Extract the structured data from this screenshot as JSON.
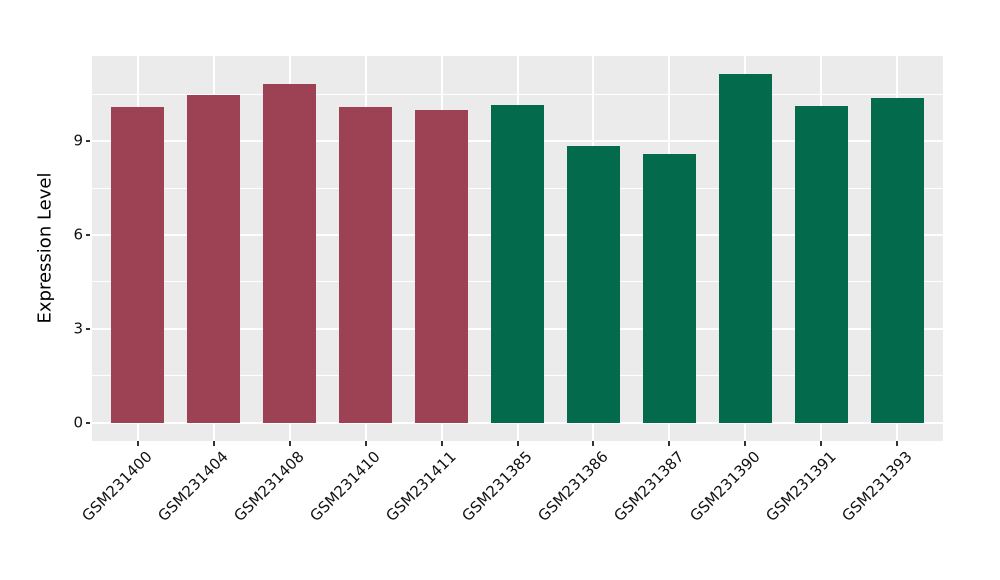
{
  "chart_data": {
    "type": "bar",
    "title": "",
    "xlabel": "",
    "ylabel": "Expression Level",
    "categories": [
      "GSM231400",
      "GSM231404",
      "GSM231408",
      "GSM231410",
      "GSM231411",
      "GSM231385",
      "GSM231386",
      "GSM231387",
      "GSM231390",
      "GSM231391",
      "GSM231393"
    ],
    "values": [
      10.08,
      10.48,
      10.83,
      10.08,
      9.98,
      10.16,
      8.85,
      8.6,
      11.14,
      10.12,
      10.37
    ],
    "bar_colors": [
      "#9C4254",
      "#9C4254",
      "#9C4254",
      "#9C4254",
      "#9C4254",
      "#036A4B",
      "#036A4B",
      "#036A4B",
      "#036A4B",
      "#036A4B",
      "#036A4B"
    ],
    "ytick_labels": [
      "0",
      "3",
      "6",
      "9"
    ],
    "ytick_values": [
      0,
      3,
      6,
      9
    ],
    "yminor_values": [
      1.5,
      4.5,
      7.5,
      10.5
    ],
    "ylim": [
      -0.58,
      11.72
    ],
    "bar_width_fraction": 0.7,
    "panel_bg": "#EBEBEB",
    "grid_color": "#FFFFFF",
    "accent_red": "#9C4254",
    "accent_green": "#036A4B",
    "legend": "none",
    "grid": "on"
  }
}
